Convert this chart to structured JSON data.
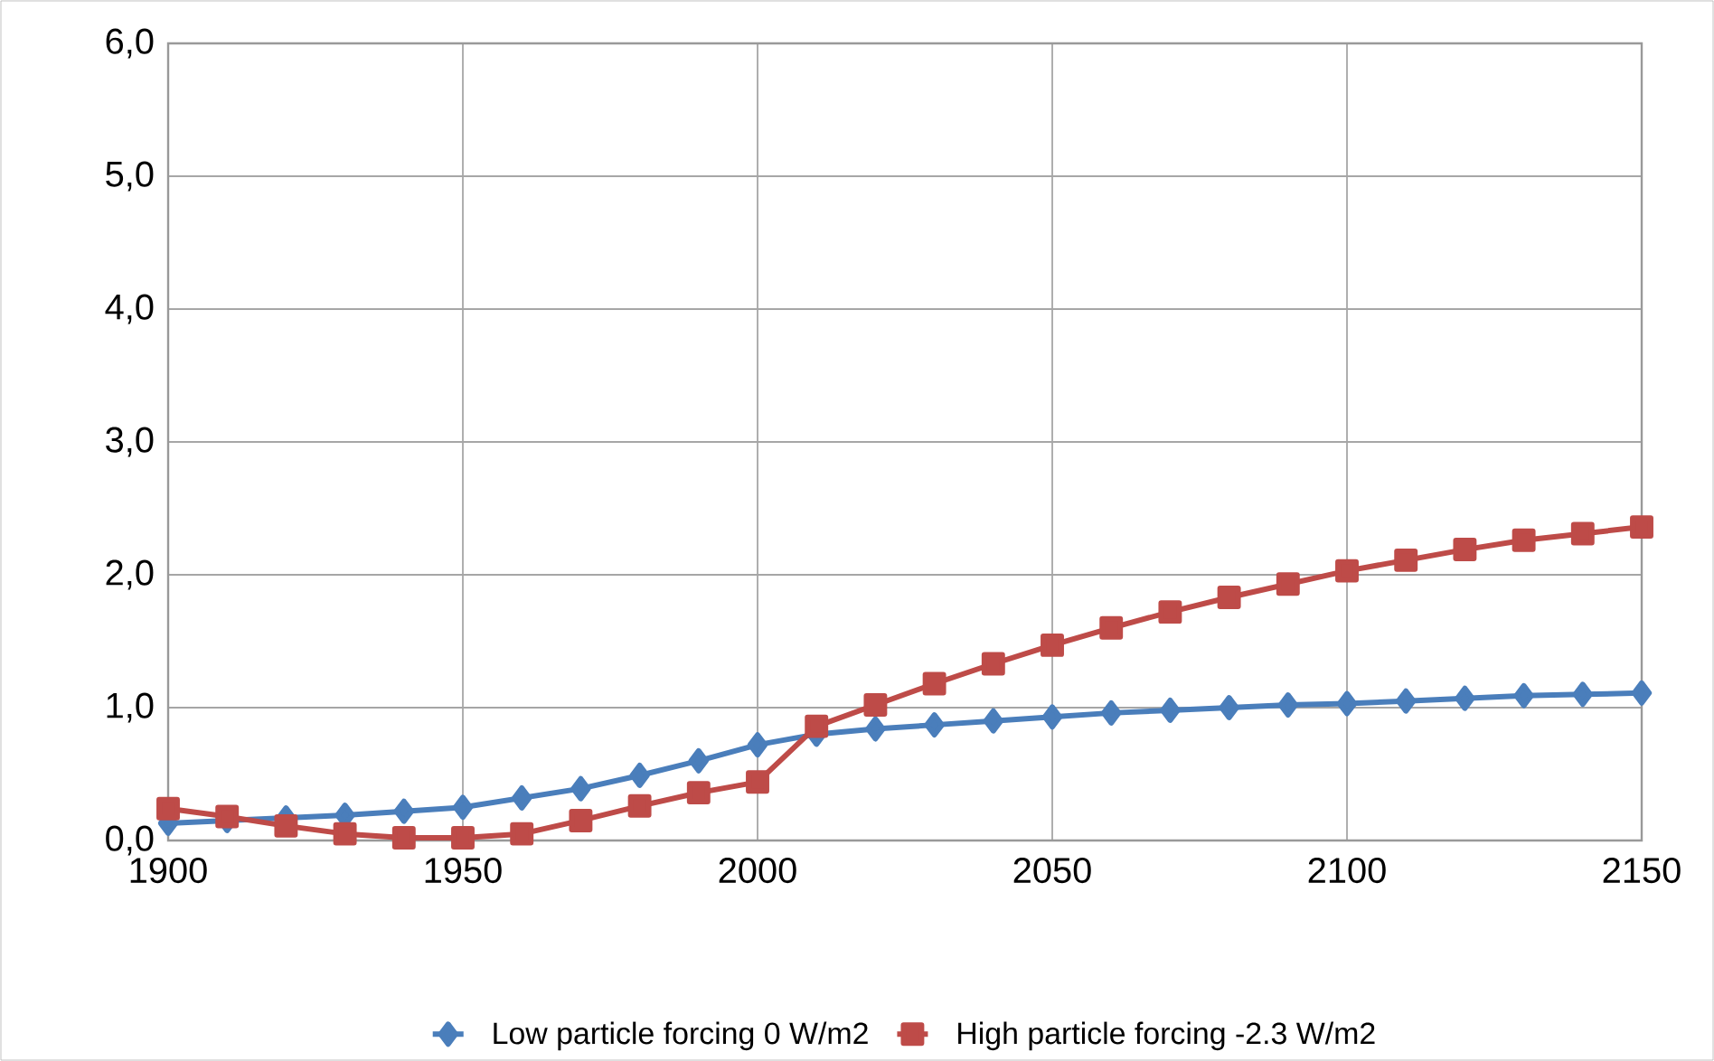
{
  "chart_data": {
    "type": "line",
    "x": [
      1900,
      1910,
      1920,
      1930,
      1940,
      1950,
      1960,
      1970,
      1980,
      1990,
      2000,
      2010,
      2020,
      2030,
      2040,
      2050,
      2060,
      2070,
      2080,
      2090,
      2100,
      2110,
      2120,
      2130,
      2140,
      2150
    ],
    "series": [
      {
        "name": "Low particle forcing 0 W/m2",
        "color": "#4a7ebb",
        "marker": "diamond",
        "values": [
          0.13,
          0.15,
          0.17,
          0.19,
          0.22,
          0.25,
          0.32,
          0.39,
          0.49,
          0.6,
          0.72,
          0.8,
          0.84,
          0.87,
          0.9,
          0.93,
          0.96,
          0.98,
          1.0,
          1.02,
          1.03,
          1.05,
          1.07,
          1.09,
          1.1,
          1.11
        ]
      },
      {
        "name": "High particle forcing -2.3 W/m2",
        "color": "#be4b48",
        "marker": "square",
        "values": [
          0.24,
          0.18,
          0.11,
          0.05,
          0.02,
          0.02,
          0.05,
          0.15,
          0.26,
          0.36,
          0.44,
          0.86,
          1.02,
          1.18,
          1.33,
          1.47,
          1.6,
          1.72,
          1.83,
          1.93,
          2.03,
          2.11,
          2.19,
          2.26,
          2.31,
          2.36
        ]
      }
    ],
    "xlim": [
      1900,
      2150
    ],
    "xticks": [
      1900,
      1950,
      2000,
      2050,
      2100,
      2150
    ],
    "ylim": [
      0,
      6
    ],
    "yticks": [
      {
        "value": 0,
        "label": "0,0"
      },
      {
        "value": 1,
        "label": "1,0"
      },
      {
        "value": 2,
        "label": "2,0"
      },
      {
        "value": 3,
        "label": "3,0"
      },
      {
        "value": 4,
        "label": "4,0"
      },
      {
        "value": 5,
        "label": "5,0"
      },
      {
        "value": 6,
        "label": "6,0"
      }
    ],
    "grid": true,
    "legend": "bottom",
    "line_style": "solid"
  }
}
